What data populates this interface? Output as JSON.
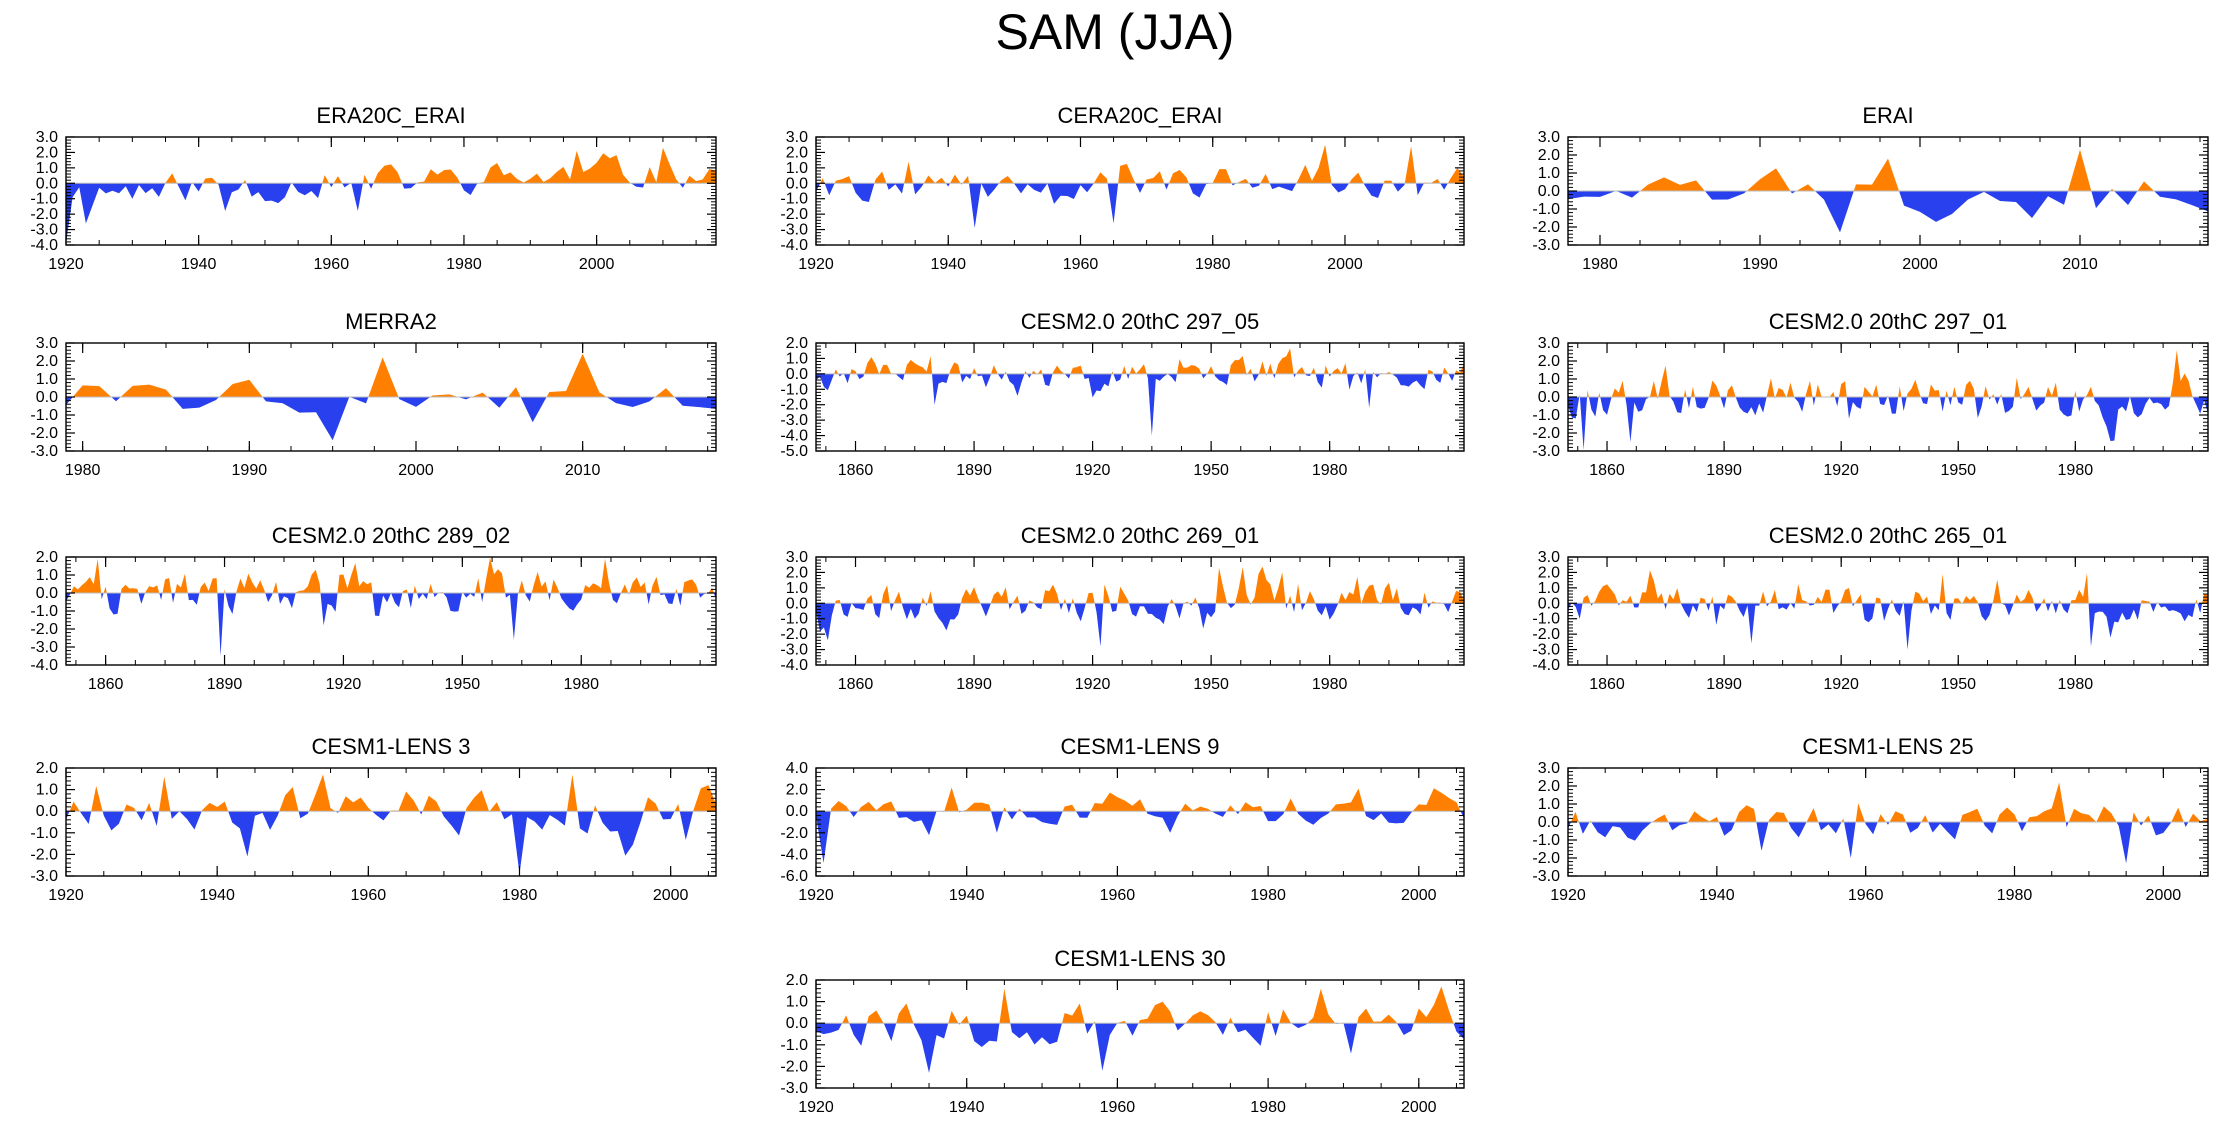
{
  "title": "SAM (JJA)",
  "colors": {
    "positive": "#ff8000",
    "negative": "#2840ee",
    "frame": "#000000",
    "zero_line": "#bbbbbb"
  },
  "chart_data": [
    {
      "type": "area",
      "title": "ERA20C_ERAI",
      "xlim": [
        1920,
        2018
      ],
      "ylim": [
        -4.0,
        3.0
      ],
      "yticks": [
        "3.0",
        "2.0",
        "1.0",
        "0.0",
        "-1.0",
        "-2.0",
        "-3.0",
        "-4.0"
      ],
      "xticks": [
        1920,
        1940,
        1960,
        1980,
        2000
      ],
      "seed": 11,
      "amp": 0.9,
      "trend": 0.55,
      "spikes": [
        [
          1920,
          -4.0
        ],
        [
          1923,
          -2.6
        ],
        [
          1944,
          -1.8
        ],
        [
          1964,
          -1.8
        ],
        [
          1997,
          2.1
        ],
        [
          2010,
          2.3
        ]
      ]
    },
    {
      "type": "area",
      "title": "CERA20C_ERAI",
      "xlim": [
        1920,
        2018
      ],
      "ylim": [
        -4.0,
        3.0
      ],
      "yticks": [
        "3.0",
        "2.0",
        "1.0",
        "0.0",
        "-1.0",
        "-2.0",
        "-3.0",
        "-4.0"
      ],
      "xticks": [
        1920,
        1940,
        1960,
        1980,
        2000
      ],
      "seed": 22,
      "amp": 0.85,
      "trend": 0.2,
      "spikes": [
        [
          1944,
          -2.9
        ],
        [
          1965,
          -2.6
        ],
        [
          1997,
          2.5
        ],
        [
          2010,
          2.4
        ],
        [
          1934,
          1.4
        ]
      ]
    },
    {
      "type": "area",
      "title": "ERAI",
      "xlim": [
        1978,
        2018
      ],
      "ylim": [
        -3.0,
        3.0
      ],
      "yticks": [
        "3.0",
        "2.0",
        "1.0",
        "0.0",
        "-1.0",
        "-2.0",
        "-3.0"
      ],
      "xticks": [
        1980,
        1990,
        2000,
        2010
      ],
      "seed": 33,
      "amp": 0.9,
      "trend": 0.0,
      "spikes": [
        [
          1995,
          -2.3
        ],
        [
          2010,
          2.3
        ],
        [
          1998,
          1.8
        ],
        [
          2007,
          -1.5
        ]
      ]
    },
    {
      "type": "area",
      "title": "MERRA2",
      "xlim": [
        1979,
        2018
      ],
      "ylim": [
        -3.0,
        3.0
      ],
      "yticks": [
        "3.0",
        "2.0",
        "1.0",
        "0.0",
        "-1.0",
        "-2.0",
        "-3.0"
      ],
      "xticks": [
        1980,
        1990,
        2000,
        2010
      ],
      "seed": 44,
      "amp": 0.9,
      "trend": 0.0,
      "spikes": [
        [
          1995,
          -2.4
        ],
        [
          1998,
          2.2
        ],
        [
          2010,
          2.4
        ],
        [
          2007,
          -1.4
        ]
      ]
    },
    {
      "type": "area",
      "title": "CESM2.0 20thC 297_05",
      "xlim": [
        1850,
        2014
      ],
      "ylim": [
        -5.0,
        2.0
      ],
      "yticks": [
        "2.0",
        "1.0",
        "0.0",
        "-1.0",
        "-2.0",
        "-3.0",
        "-4.0",
        "-5.0"
      ],
      "xticks": [
        1860,
        1890,
        1920,
        1950,
        1980
      ],
      "seed": 55,
      "amp": 0.85,
      "trend": 0.0,
      "spikes": [
        [
          1935,
          -4.0
        ],
        [
          1880,
          -2.0
        ],
        [
          1990,
          -2.2
        ]
      ]
    },
    {
      "type": "area",
      "title": "CESM2.0 20thC 297_01",
      "xlim": [
        1850,
        2014
      ],
      "ylim": [
        -3.0,
        3.0
      ],
      "yticks": [
        "3.0",
        "2.0",
        "1.0",
        "0.0",
        "-1.0",
        "-2.0",
        "-3.0"
      ],
      "xticks": [
        1860,
        1890,
        1920,
        1950,
        1980
      ],
      "seed": 66,
      "amp": 1.0,
      "trend": 0.0,
      "spikes": [
        [
          1854,
          -3.0
        ],
        [
          2006,
          2.6
        ],
        [
          1866,
          -2.5
        ]
      ]
    },
    {
      "type": "area",
      "title": "CESM2.0 20thC 289_02",
      "xlim": [
        1850,
        2014
      ],
      "ylim": [
        -4.0,
        2.0
      ],
      "yticks": [
        "2.0",
        "1.0",
        "0.0",
        "-1.0",
        "-2.0",
        "-3.0",
        "-4.0"
      ],
      "xticks": [
        1860,
        1890,
        1920,
        1950,
        1980
      ],
      "seed": 77,
      "amp": 1.0,
      "trend": 0.0,
      "spikes": [
        [
          1889,
          -3.5
        ],
        [
          1858,
          1.9
        ],
        [
          1963,
          -2.6
        ],
        [
          1915,
          -1.8
        ]
      ]
    },
    {
      "type": "area",
      "title": "CESM2.0 20thC 269_01",
      "xlim": [
        1850,
        2014
      ],
      "ylim": [
        -4.0,
        3.0
      ],
      "yticks": [
        "3.0",
        "2.0",
        "1.0",
        "0.0",
        "-1.0",
        "-2.0",
        "-3.0",
        "-4.0"
      ],
      "xticks": [
        1860,
        1890,
        1920,
        1950,
        1980
      ],
      "seed": 88,
      "amp": 1.0,
      "trend": 0.0,
      "spikes": [
        [
          1922,
          -2.8
        ],
        [
          1952,
          2.3
        ],
        [
          1968,
          2.0
        ],
        [
          1853,
          -2.4
        ]
      ]
    },
    {
      "type": "area",
      "title": "CESM2.0 20thC 265_01",
      "xlim": [
        1850,
        2014
      ],
      "ylim": [
        -4.0,
        3.0
      ],
      "yticks": [
        "3.0",
        "2.0",
        "1.0",
        "0.0",
        "-1.0",
        "-2.0",
        "-3.0",
        "-4.0"
      ],
      "xticks": [
        1860,
        1890,
        1920,
        1950,
        1980
      ],
      "seed": 99,
      "amp": 0.95,
      "trend": 0.0,
      "spikes": [
        [
          1937,
          -3.0
        ],
        [
          1984,
          -2.8
        ],
        [
          1897,
          -2.6
        ],
        [
          1946,
          1.9
        ]
      ]
    },
    {
      "type": "area",
      "title": "CESM1-LENS 3",
      "xlim": [
        1920,
        2006
      ],
      "ylim": [
        -3.0,
        2.0
      ],
      "yticks": [
        "2.0",
        "1.0",
        "0.0",
        "-1.0",
        "-2.0",
        "-3.0"
      ],
      "xticks": [
        1920,
        1940,
        1960,
        1980,
        2000
      ],
      "seed": 111,
      "amp": 0.9,
      "trend": 0.0,
      "spikes": [
        [
          1980,
          -2.9
        ],
        [
          1944,
          -2.1
        ],
        [
          1987,
          1.7
        ],
        [
          1954,
          1.7
        ],
        [
          1933,
          1.6
        ]
      ]
    },
    {
      "type": "area",
      "title": "CESM1-LENS 9",
      "xlim": [
        1920,
        2006
      ],
      "ylim": [
        -6.0,
        4.0
      ],
      "yticks": [
        "4.0",
        "2.0",
        "0.0",
        "-2.0",
        "-4.0",
        "-6.0"
      ],
      "xticks": [
        1920,
        1940,
        1960,
        1980,
        2000
      ],
      "seed": 122,
      "amp": 1.0,
      "trend": 0.0,
      "spikes": [
        [
          1921,
          -4.8
        ],
        [
          1938,
          2.2
        ],
        [
          1967,
          -2.0
        ],
        [
          1992,
          2.1
        ],
        [
          1944,
          -2.0
        ]
      ]
    },
    {
      "type": "area",
      "title": "CESM1-LENS 25",
      "xlim": [
        1920,
        2006
      ],
      "ylim": [
        -3.0,
        3.0
      ],
      "yticks": [
        "3.0",
        "2.0",
        "1.0",
        "0.0",
        "-1.0",
        "-2.0",
        "-3.0"
      ],
      "xticks": [
        1920,
        1940,
        1960,
        1980,
        2000
      ],
      "seed": 133,
      "amp": 0.9,
      "trend": 0.0,
      "spikes": [
        [
          1986,
          2.2
        ],
        [
          1995,
          -2.3
        ],
        [
          1958,
          -2.0
        ],
        [
          1946,
          -1.6
        ]
      ]
    },
    {
      "type": "area",
      "title": "CESM1-LENS 30",
      "xlim": [
        1920,
        2006
      ],
      "ylim": [
        -3.0,
        2.0
      ],
      "yticks": [
        "2.0",
        "1.0",
        "0.0",
        "-1.0",
        "-2.0",
        "-3.0"
      ],
      "xticks": [
        1920,
        1940,
        1960,
        1980,
        2000
      ],
      "seed": 144,
      "amp": 0.9,
      "trend": 0.0,
      "spikes": [
        [
          1935,
          -2.3
        ],
        [
          1958,
          -2.2
        ],
        [
          2003,
          1.7
        ],
        [
          1945,
          1.6
        ]
      ]
    }
  ]
}
